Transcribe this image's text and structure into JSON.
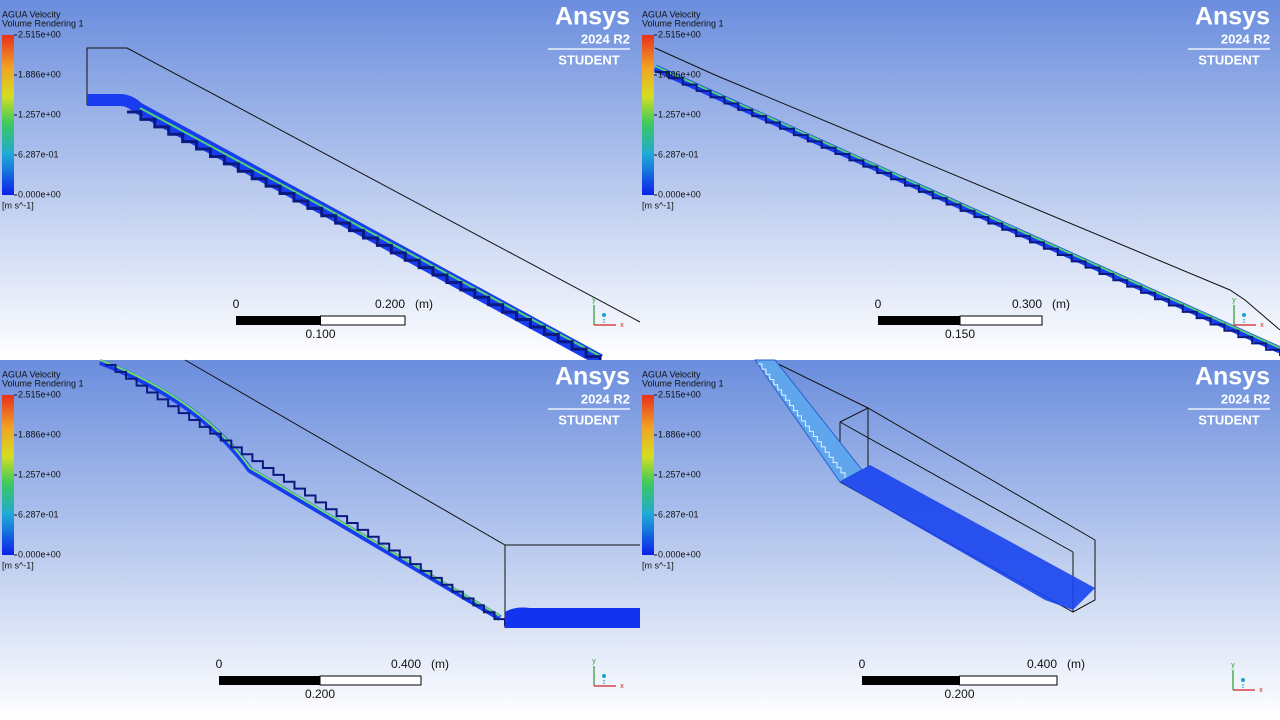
{
  "panels": [
    {
      "legend": {
        "title": "AGUA Velocity",
        "subtitle": "Volume Rendering 1",
        "ticks": [
          "2.515e+00",
          "1.886e+00",
          "1.257e+00",
          "6.287e-01",
          "0.000e+00"
        ],
        "unit": "[m s^-1]"
      },
      "logo": {
        "name": "Ansys",
        "version": "2024 R2",
        "edition": "STUDENT"
      },
      "scale": {
        "start": "0",
        "end": "0.200",
        "unit": "(m)",
        "mid": "0.100"
      },
      "triad": {
        "y": "y",
        "x": "x",
        "z": "z"
      }
    },
    {
      "legend": {
        "title": "AGUA Velocity",
        "subtitle": "Volume Rendering 1",
        "ticks": [
          "2.515e+00",
          "1.886e+00",
          "1.257e+00",
          "6.287e-01",
          "0.000e+00"
        ],
        "unit": "[m s^-1]"
      },
      "logo": {
        "name": "Ansys",
        "version": "2024 R2",
        "edition": "STUDENT"
      },
      "scale": {
        "start": "0",
        "end": "0.300",
        "unit": "(m)",
        "mid": "0.150"
      },
      "triad": {
        "y": "y",
        "x": "x",
        "z": "z"
      }
    },
    {
      "legend": {
        "title": "AGUA Velocity",
        "subtitle": "Volume Rendering 1",
        "ticks": [
          "2.515e+00",
          "1.886e+00",
          "1.257e+00",
          "6.287e-01",
          "0.000e+00"
        ],
        "unit": "[m s^-1]"
      },
      "logo": {
        "name": "Ansys",
        "version": "2024 R2",
        "edition": "STUDENT"
      },
      "scale": {
        "start": "0",
        "end": "0.400",
        "unit": "(m)",
        "mid": "0.200"
      },
      "triad": {
        "y": "y",
        "x": "x",
        "z": "z"
      }
    },
    {
      "legend": {
        "title": "AGUA Velocity",
        "subtitle": "Volume Rendering 1",
        "ticks": [
          "2.515e+00",
          "1.886e+00",
          "1.257e+00",
          "6.287e-01",
          "0.000e+00"
        ],
        "unit": "[m s^-1]"
      },
      "logo": {
        "name": "Ansys",
        "version": "2024 R2",
        "edition": "STUDENT"
      },
      "scale": {
        "start": "0",
        "end": "0.400",
        "unit": "(m)",
        "mid": "0.200"
      },
      "triad": {
        "y": "y",
        "x": "x",
        "z": "z"
      }
    }
  ]
}
